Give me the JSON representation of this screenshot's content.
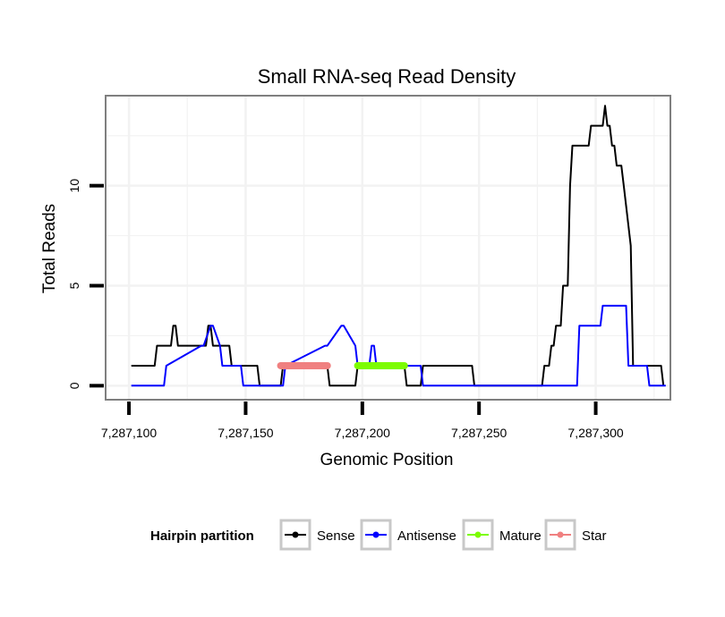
{
  "chart_data": {
    "type": "line",
    "title": "Small RNA-seq Read Density",
    "xlabel": "Genomic Position",
    "ylabel": "Total Reads",
    "xlim": [
      7287090,
      7287332
    ],
    "ylim": [
      -0.7,
      14.5
    ],
    "x_ticks": [
      7287100,
      7287150,
      7287200,
      7287250,
      7287300
    ],
    "x_tick_labels": [
      "7,287,100",
      "7,287,150",
      "7,287,200",
      "7,287,250",
      "7,287,300"
    ],
    "y_ticks": [
      0,
      5,
      10
    ],
    "y_tick_labels": [
      "0",
      "5",
      "10"
    ],
    "legend": {
      "title": "Hairpin partition",
      "position": "bottom",
      "entries": [
        {
          "label": "Sense",
          "color": "#000000"
        },
        {
          "label": "Antisense",
          "color": "#0000ff"
        },
        {
          "label": "Mature",
          "color": "#7cfc00"
        },
        {
          "label": "Star",
          "color": "#f08080"
        }
      ]
    },
    "series": [
      {
        "name": "Sense",
        "color": "#000000",
        "x": [
          7287101,
          7287111,
          7287112,
          7287118,
          7287119,
          7287120,
          7287121,
          7287133,
          7287134,
          7287135,
          7287136,
          7287137,
          7287138,
          7287143,
          7287144,
          7287155,
          7287156,
          7287165,
          7287166,
          7287180,
          7287181,
          7287185,
          7287186,
          7287197,
          7287198,
          7287209,
          7287210,
          7287218,
          7287219,
          7287225,
          7287226,
          7287247,
          7287248,
          7287277,
          7287278,
          7287280,
          7287281,
          7287282,
          7287283,
          7287285,
          7287286,
          7287288,
          7287289,
          7287290,
          7287291,
          7287297,
          7287298,
          7287302,
          7287303,
          7287304,
          7287305,
          7287306,
          7287307,
          7287308,
          7287309,
          7287311,
          7287312,
          7287313,
          7287314,
          7287315,
          7287316,
          7287317,
          7287318,
          7287328,
          7287329
        ],
        "y": [
          1,
          1,
          2,
          2,
          3,
          3,
          2,
          2,
          3,
          3,
          2,
          2,
          2,
          2,
          1,
          1,
          0,
          0,
          1,
          1,
          1,
          1,
          0,
          0,
          1,
          1,
          1,
          1,
          0,
          0,
          1,
          1,
          0,
          0,
          1,
          1,
          2,
          2,
          3,
          3,
          5,
          5,
          10,
          12,
          12,
          12,
          13,
          13,
          13,
          14,
          13,
          13,
          12,
          12,
          11,
          11,
          10,
          9,
          8,
          7,
          1,
          1,
          1,
          1,
          0
        ]
      },
      {
        "name": "Antisense",
        "color": "#0000ff",
        "x": [
          7287101,
          7287115,
          7287116,
          7287131,
          7287132,
          7287135,
          7287136,
          7287139,
          7287140,
          7287148,
          7287149,
          7287166,
          7287167,
          7287184,
          7287185,
          7287191,
          7287192,
          7287197,
          7287198,
          7287202,
          7287203,
          7287204,
          7287205,
          7287206,
          7287207,
          7287225,
          7287226,
          7287292,
          7287293,
          7287302,
          7287303,
          7287313,
          7287314,
          7287322,
          7287323,
          7287330
        ],
        "y": [
          0,
          0,
          1,
          2,
          2,
          3,
          3,
          2,
          1,
          1,
          0,
          0,
          1,
          2,
          2,
          3,
          3,
          2,
          1,
          1,
          1,
          2,
          2,
          1,
          1,
          1,
          0,
          0,
          3,
          3,
          4,
          4,
          1,
          1,
          0,
          0
        ]
      }
    ],
    "segments": [
      {
        "name": "Star",
        "color": "#f08080",
        "x_start": 7287165,
        "x_end": 7287185,
        "y": 1
      },
      {
        "name": "Mature",
        "color": "#7cfc00",
        "x_start": 7287198,
        "x_end": 7287218,
        "y": 1
      }
    ]
  }
}
